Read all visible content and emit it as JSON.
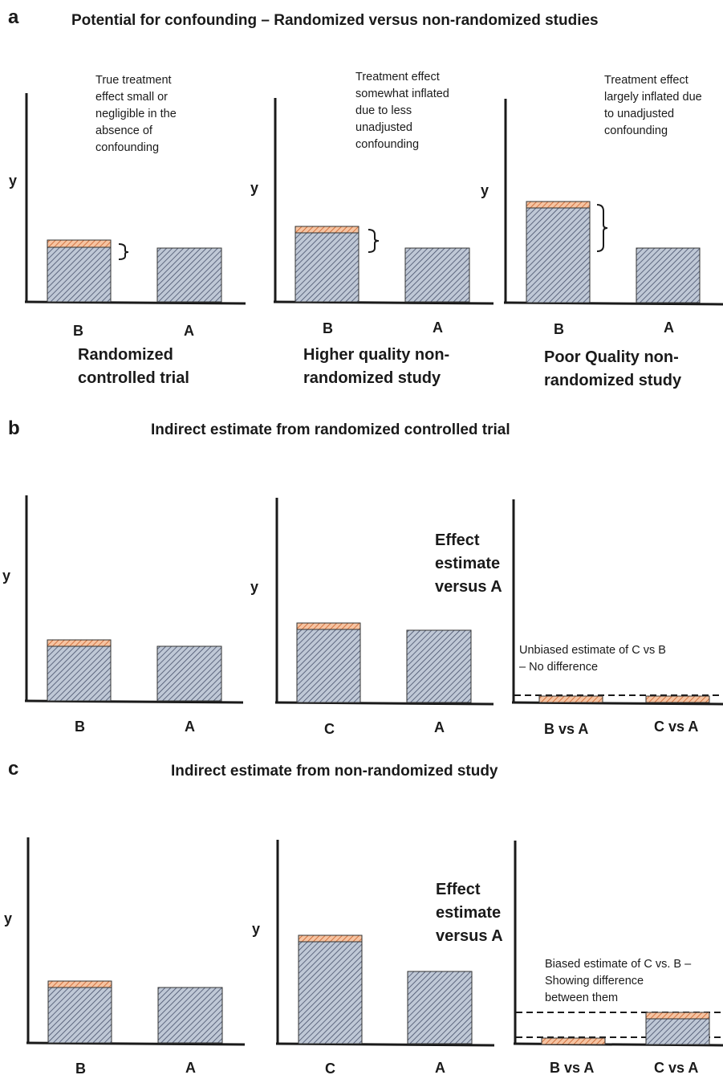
{
  "panels": [
    {
      "letter": "a",
      "title": "Potential for confounding – Randomized versus non-randomized studies",
      "charts": [
        {
          "y_label": "y",
          "categories": [
            "B",
            "A"
          ],
          "caption": [
            "Randomized",
            "controlled trial"
          ],
          "annotation": [
            "True treatment",
            "effect small or",
            "negligible in the",
            "absence of",
            "confounding"
          ]
        },
        {
          "y_label": "y",
          "categories": [
            "B",
            "A"
          ],
          "caption": [
            "Higher quality non-",
            "randomized study"
          ],
          "annotation": [
            "Treatment effect",
            "somewhat inflated",
            "due to less",
            "unadjusted",
            "confounding"
          ]
        },
        {
          "y_label": "y",
          "categories": [
            "B",
            "A"
          ],
          "caption": [
            "Poor Quality non-",
            "randomized study"
          ],
          "annotation": [
            "Treatment effect",
            "largely inflated due",
            "to unadjusted",
            "confounding"
          ]
        }
      ]
    },
    {
      "letter": "b",
      "title": "Indirect estimate from randomized controlled trial",
      "charts": [
        {
          "y_label": "y",
          "categories": [
            "B",
            "A"
          ]
        },
        {
          "y_label": "y",
          "categories": [
            "C",
            "A"
          ],
          "annotation": [
            "Effect",
            "estimate",
            "versus A"
          ]
        },
        {
          "categories": [
            "B vs A",
            "C vs A"
          ],
          "annotation": [
            "Unbiased estimate of C vs B",
            "– No difference"
          ]
        }
      ]
    },
    {
      "letter": "c",
      "title": "Indirect estimate from non-randomized study",
      "charts": [
        {
          "y_label": "y",
          "categories": [
            "B",
            "A"
          ]
        },
        {
          "y_label": "y",
          "categories": [
            "C",
            "A"
          ],
          "annotation": [
            "Effect",
            "estimate",
            "versus A"
          ]
        },
        {
          "categories": [
            "B vs A",
            "C vs A"
          ],
          "annotation": [
            "Biased estimate of C vs. B –",
            "Showing difference",
            "between them"
          ]
        }
      ]
    }
  ],
  "colors": {
    "bar_fill": "#b9c3d3",
    "hatch_line": "#4a5466",
    "effect_fill": "#f3b48c",
    "effect_hatch": "#c9642e",
    "axis": "#1a1a1a"
  }
}
